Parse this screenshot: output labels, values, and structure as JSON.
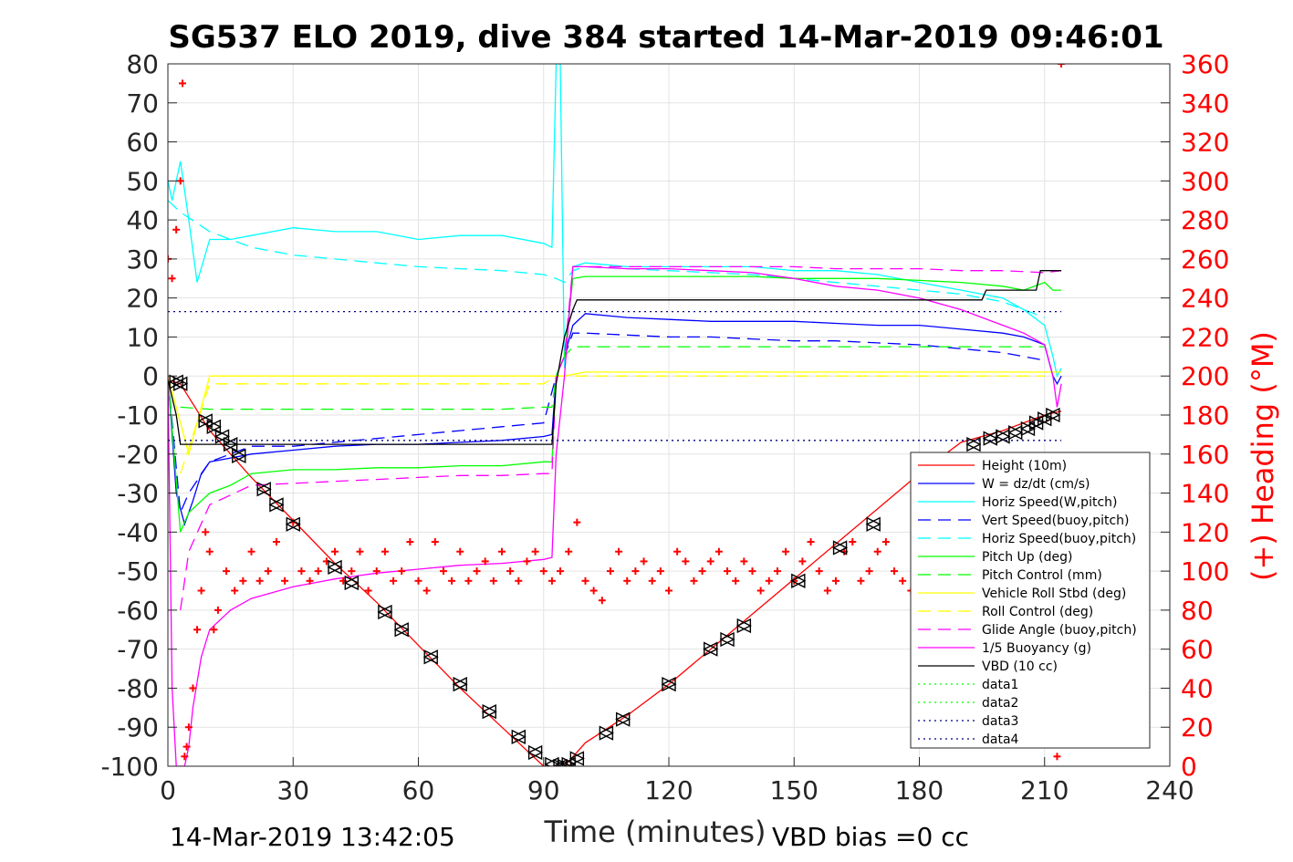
{
  "chart_data": {
    "type": "line",
    "title": "SG537 ELO 2019, dive 384 started 14-Mar-2019 09:46:01",
    "xlabel": "Time (minutes)",
    "ylabel": "",
    "y2label": "(+) Heading (°M)",
    "xlim": [
      0,
      240
    ],
    "ylim": [
      -100,
      80
    ],
    "y2lim": [
      0,
      360
    ],
    "x_ticks": [
      "0",
      "30",
      "60",
      "90",
      "120",
      "150",
      "180",
      "210",
      "240"
    ],
    "y_ticks": [
      "80",
      "70",
      "60",
      "50",
      "40",
      "30",
      "20",
      "10",
      "0",
      "-10",
      "-20",
      "-30",
      "-40",
      "-50",
      "-60",
      "-70",
      "-80",
      "-90",
      "-100"
    ],
    "y2_ticks": [
      "360",
      "340",
      "320",
      "300",
      "280",
      "260",
      "240",
      "220",
      "200",
      "180",
      "160",
      "140",
      "120",
      "100",
      "80",
      "60",
      "40",
      "20",
      "0"
    ],
    "grid": true,
    "legend_position": "bottom-right",
    "footer_left": "14-Mar-2019 13:42:05",
    "footer_right": "VBD bias =0 cc",
    "series": [
      {
        "name": "Height (10m)",
        "color": "#ff0000",
        "style": "solid",
        "x": [
          0,
          3,
          10,
          20,
          30,
          40,
          50,
          60,
          70,
          80,
          90,
          94,
          95,
          100,
          110,
          120,
          130,
          140,
          150,
          160,
          170,
          180,
          190,
          200,
          210,
          214
        ],
        "y": [
          -1,
          -2,
          -14,
          -26,
          -37,
          -48,
          -58,
          -69,
          -80,
          -90,
          -100,
          -100,
          -100,
          -94,
          -87,
          -79,
          -70,
          -61,
          -52,
          -43,
          -34,
          -25,
          -17,
          -14,
          -10,
          -9
        ]
      },
      {
        "name": "W = dz/dt (cm/s)",
        "color": "#0000ff",
        "style": "solid",
        "x": [
          0,
          2,
          4,
          6,
          8,
          10,
          15,
          20,
          30,
          40,
          50,
          60,
          70,
          80,
          90,
          92,
          93,
          95,
          97,
          100,
          110,
          120,
          130,
          140,
          150,
          160,
          170,
          180,
          190,
          200,
          205,
          210,
          212,
          213,
          214
        ],
        "y": [
          0,
          -30,
          -38,
          -32,
          -25,
          -22,
          -21,
          -20,
          -19,
          -18,
          -17.5,
          -17.5,
          -17,
          -16.5,
          -15.5,
          -15,
          0,
          5,
          13,
          16,
          15,
          14.5,
          14,
          14,
          14,
          13.5,
          13,
          13,
          12,
          11,
          10,
          8,
          0,
          -2,
          0
        ]
      },
      {
        "name": "Horiz Speed(W,pitch)",
        "color": "#00ffff",
        "style": "solid",
        "x": [
          0,
          1,
          3,
          5,
          7,
          10,
          15,
          20,
          30,
          40,
          50,
          60,
          70,
          80,
          90,
          92,
          93,
          94,
          95,
          97,
          100,
          110,
          120,
          130,
          140,
          150,
          160,
          170,
          180,
          190,
          200,
          205,
          210,
          212,
          213,
          214
        ],
        "y": [
          50,
          45,
          55,
          40,
          24,
          35,
          35,
          36,
          38,
          37,
          37,
          35,
          36,
          36,
          34,
          33,
          80,
          80,
          2,
          28,
          29,
          28,
          28,
          28,
          28,
          27,
          27,
          26,
          24,
          22,
          20,
          17,
          13,
          5,
          0,
          2
        ]
      },
      {
        "name": "Vert Speed(buoy,pitch)",
        "color": "#0000ff",
        "style": "dashed",
        "x": [
          0,
          3,
          5,
          10,
          20,
          30,
          40,
          50,
          60,
          70,
          80,
          90,
          93,
          95,
          97,
          100,
          110,
          120,
          130,
          140,
          150,
          160,
          170,
          180,
          190,
          200,
          210
        ],
        "y": [
          0,
          -35,
          -30,
          -22,
          -18,
          -18,
          -17,
          -16,
          -15,
          -14,
          -13,
          -12,
          0,
          5,
          11,
          11,
          10.5,
          10,
          10,
          9.5,
          9,
          9,
          8.5,
          8,
          7,
          6,
          4
        ]
      },
      {
        "name": "Horiz Speed(buoy,pitch)",
        "color": "#00ffff",
        "style": "dashed",
        "x": [
          0,
          3,
          10,
          20,
          30,
          40,
          50,
          60,
          70,
          80,
          90,
          93,
          95,
          97,
          100,
          110,
          120,
          130,
          140,
          150,
          160,
          170,
          180,
          190,
          200,
          210
        ],
        "y": [
          45,
          42,
          37,
          33,
          31,
          30,
          29,
          28,
          27.5,
          27,
          26,
          25,
          24,
          27,
          28,
          27.5,
          27,
          26.5,
          26,
          25,
          24,
          23,
          22,
          21,
          19,
          15
        ]
      },
      {
        "name": "Pitch Up (deg)",
        "color": "#00ff00",
        "style": "solid",
        "x": [
          0,
          3,
          5,
          10,
          15,
          20,
          30,
          40,
          50,
          60,
          70,
          80,
          90,
          92,
          93,
          95,
          97,
          100,
          110,
          120,
          130,
          140,
          150,
          160,
          170,
          180,
          190,
          200,
          205,
          210,
          212,
          214
        ],
        "y": [
          0,
          -40,
          -35,
          -30,
          -28,
          -25,
          -24,
          -24,
          -23.5,
          -23.5,
          -23,
          -23,
          -22,
          -22,
          0,
          5,
          25,
          25.5,
          25.5,
          25.5,
          25.5,
          25.5,
          25,
          25,
          25,
          24.5,
          24,
          23,
          22,
          24,
          22,
          22
        ]
      },
      {
        "name": "Pitch Control (mm)",
        "color": "#00ff00",
        "style": "dashed",
        "x": [
          3,
          10,
          20,
          30,
          40,
          50,
          60,
          70,
          80,
          90,
          92,
          93,
          95,
          97,
          100,
          120,
          140,
          160,
          180,
          200,
          210
        ],
        "y": [
          -8,
          -8.5,
          -8.5,
          -8.5,
          -8.5,
          -8.5,
          -8.5,
          -8.5,
          -8.5,
          -8,
          -8,
          0,
          5,
          7.5,
          7.5,
          7.5,
          7.5,
          7.5,
          7.5,
          7.5,
          7.5
        ]
      },
      {
        "name": "Vehicle Roll Stbd (deg)",
        "color": "#ffff00",
        "style": "solid",
        "x": [
          0,
          5,
          10,
          20,
          30,
          40,
          50,
          60,
          70,
          80,
          90,
          93,
          95,
          100,
          120,
          140,
          160,
          180,
          200,
          210,
          214
        ],
        "y": [
          0,
          -20,
          0,
          0,
          0,
          0,
          0,
          0,
          0,
          0,
          0,
          0,
          0,
          1,
          1,
          1,
          1,
          1,
          1,
          1,
          1
        ]
      },
      {
        "name": "Roll Control (deg)",
        "color": "#ffff00",
        "style": "dashed",
        "x": [
          3,
          10,
          20,
          30,
          40,
          50,
          60,
          70,
          80,
          90,
          93,
          95,
          100,
          120,
          140,
          160,
          180,
          200,
          210
        ],
        "y": [
          -25,
          -2,
          -2,
          -2,
          -2,
          -2,
          -2,
          -2,
          -2,
          -2,
          0,
          0,
          0,
          0,
          0,
          0,
          0,
          0,
          0
        ]
      },
      {
        "name": "Glide Angle (buoy,pitch)",
        "color": "#ff00ff",
        "style": "dashed",
        "x": [
          3,
          5,
          10,
          20,
          30,
          40,
          50,
          60,
          70,
          80,
          90,
          92,
          93,
          95,
          97,
          100,
          110,
          120,
          130,
          140,
          150,
          160,
          170,
          180,
          190,
          200,
          210,
          214
        ],
        "y": [
          -60,
          -45,
          -33,
          -28,
          -27.5,
          -27,
          -26.5,
          -26,
          -25.5,
          -25.5,
          -25,
          -25,
          0,
          5,
          28,
          28,
          28,
          28,
          28,
          28,
          28,
          27.5,
          27.5,
          27.5,
          27,
          27,
          26.5,
          27
        ]
      },
      {
        "name": "1/5 Buoyancy (g)",
        "color": "#ff00ff",
        "style": "solid",
        "x": [
          0,
          1,
          2,
          3,
          4,
          5,
          6,
          8,
          10,
          15,
          20,
          30,
          40,
          50,
          60,
          70,
          80,
          90,
          92,
          93,
          95,
          97,
          100,
          110,
          120,
          130,
          140,
          150,
          160,
          170,
          180,
          190,
          200,
          205,
          210,
          212,
          213,
          214
        ],
        "y": [
          0,
          -80,
          -100,
          -100,
          -100,
          -95,
          -85,
          -72,
          -65,
          -60,
          -57,
          -54,
          -52,
          -50.5,
          -49.5,
          -48.5,
          -48,
          -47,
          -46.5,
          -20,
          0,
          28,
          28,
          27.5,
          27.5,
          27,
          26.5,
          25,
          23,
          22,
          20,
          17,
          13,
          11,
          8,
          0,
          -8,
          -2
        ]
      },
      {
        "name": "VBD (10 cc)",
        "color": "#000000",
        "style": "solid",
        "x": [
          0,
          2,
          3,
          30,
          60,
          90,
          92,
          93,
          95,
          97,
          98,
          100,
          120,
          150,
          180,
          195,
          196,
          208,
          209,
          214
        ],
        "y": [
          -1,
          -10,
          -17.5,
          -17.5,
          -17.5,
          -17.5,
          -17.5,
          -2,
          10,
          17,
          19.5,
          19.5,
          19.5,
          19.5,
          19.5,
          19.5,
          22,
          22,
          27,
          27
        ]
      },
      {
        "name": "data1",
        "color": "#00ff00",
        "style": "dotted",
        "x": [],
        "y": []
      },
      {
        "name": "data2",
        "color": "#00ff00",
        "style": "dotted",
        "x": [],
        "y": []
      },
      {
        "name": "data3",
        "color": "#000080",
        "style": "dotted",
        "x": [
          0,
          214
        ],
        "y": [
          16.5,
          16.5
        ]
      },
      {
        "name": "data4",
        "color": "#000080",
        "style": "dotted",
        "x": [
          0,
          214
        ],
        "y": [
          -16.5,
          -16.5
        ]
      }
    ],
    "heading_series": {
      "axis": "right",
      "color": "#ff0000",
      "marker": "+",
      "x": [
        0,
        1,
        2,
        3,
        3.5,
        4,
        4.5,
        5,
        6,
        7,
        8,
        9,
        10,
        11,
        12,
        14,
        16,
        18,
        20,
        22,
        24,
        26,
        28,
        30,
        32,
        34,
        36,
        38,
        40,
        42,
        44,
        46,
        48,
        50,
        52,
        54,
        56,
        58,
        60,
        62,
        64,
        66,
        68,
        70,
        72,
        74,
        76,
        78,
        80,
        82,
        84,
        86,
        88,
        90,
        92,
        94,
        96,
        98,
        100,
        102,
        104,
        106,
        108,
        110,
        112,
        114,
        116,
        118,
        120,
        122,
        124,
        126,
        128,
        130,
        132,
        134,
        136,
        138,
        140,
        142,
        144,
        146,
        148,
        150,
        152,
        154,
        156,
        158,
        160,
        162,
        164,
        166,
        168,
        170,
        172,
        174,
        176,
        178,
        180,
        182,
        184,
        186,
        188,
        190,
        192,
        194,
        196,
        198,
        200,
        202,
        204,
        206,
        208,
        210,
        212,
        213,
        214
      ],
      "y": [
        260,
        250,
        275,
        300,
        350,
        5,
        10,
        20,
        40,
        70,
        90,
        120,
        110,
        70,
        80,
        100,
        90,
        95,
        110,
        95,
        100,
        115,
        95,
        125,
        100,
        95,
        100,
        105,
        110,
        95,
        100,
        110,
        90,
        100,
        110,
        95,
        100,
        115,
        95,
        90,
        115,
        100,
        95,
        110,
        95,
        100,
        105,
        95,
        110,
        100,
        95,
        105,
        110,
        100,
        95,
        100,
        110,
        125,
        95,
        90,
        85,
        100,
        110,
        95,
        100,
        105,
        95,
        100,
        90,
        110,
        105,
        95,
        100,
        105,
        110,
        100,
        95,
        105,
        100,
        90,
        95,
        100,
        110,
        95,
        105,
        115,
        100,
        90,
        95,
        110,
        115,
        95,
        100,
        110,
        115,
        100,
        95,
        90,
        95,
        100,
        110,
        95,
        100,
        90,
        95,
        110,
        100,
        105,
        95,
        100,
        110,
        95,
        105,
        110,
        95,
        5,
        360
      ]
    },
    "depth_markers": {
      "axis": "left",
      "color": "#000000",
      "marker": "triangle",
      "x": [
        2,
        3,
        9,
        11,
        13,
        15,
        17,
        23,
        26,
        30,
        40,
        44,
        52,
        56,
        63,
        70,
        77,
        84,
        88,
        92,
        94,
        95,
        96,
        98,
        105,
        109,
        120,
        130,
        134,
        138,
        151,
        161,
        169,
        193,
        197,
        200,
        203,
        206,
        208,
        210,
        212
      ],
      "y": [
        -1.5,
        -2,
        -11.5,
        -13,
        -15.5,
        -17.5,
        -20.5,
        -29,
        -33,
        -38,
        -49,
        -53,
        -60.5,
        -65,
        -72,
        -79,
        -86,
        -92.5,
        -96.5,
        -99.5,
        -100,
        -100,
        -99.5,
        -98,
        -91.5,
        -88,
        -79,
        -70,
        -67.5,
        -64,
        -52.5,
        -44,
        -38,
        -17.5,
        -16,
        -15.5,
        -14.5,
        -13.5,
        -12,
        -11,
        -10
      ]
    }
  }
}
